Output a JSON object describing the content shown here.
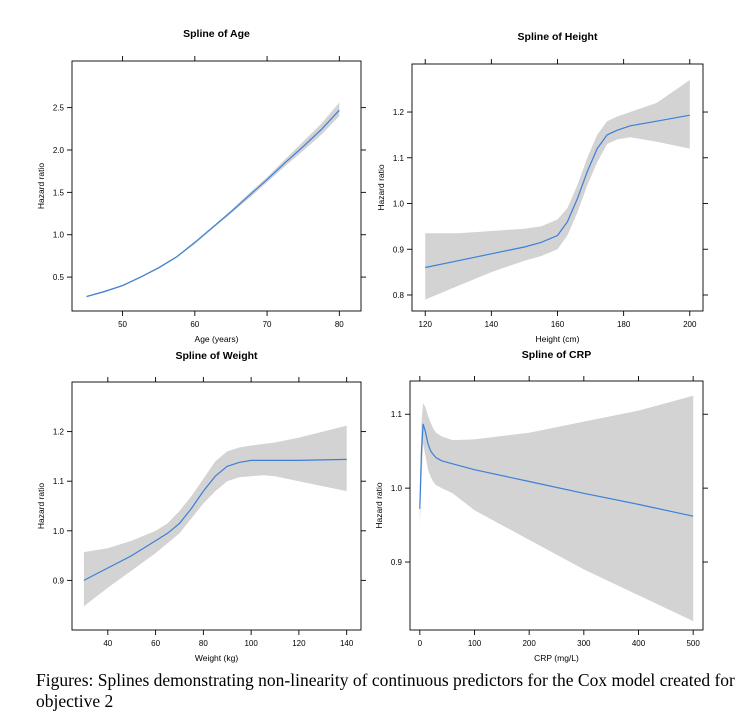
{
  "caption": "Figures: Splines demonstrating non-linearity of continuous predictors for the Cox model created for objective 2",
  "colors": {
    "line": "#3d7fd9",
    "band": "#d3d3d3",
    "axis": "#000000"
  },
  "chart_data": [
    {
      "type": "line",
      "title": "Spline of Age",
      "xlabel": "Age (years)",
      "ylabel": "Hazard ratio",
      "xlim": [
        43,
        83
      ],
      "ylim": [
        0.1,
        3.05
      ],
      "xticks": [
        50,
        60,
        70,
        80
      ],
      "yticks": [
        0.5,
        1.0,
        1.5,
        2.0,
        2.5
      ],
      "series": [
        {
          "x": [
            45,
            47.5,
            50,
            52.5,
            55,
            57.5,
            60,
            62.5,
            65,
            67.5,
            70,
            72.5,
            75,
            77.5,
            80
          ],
          "y": [
            0.27,
            0.33,
            0.4,
            0.5,
            0.61,
            0.74,
            0.91,
            1.09,
            1.27,
            1.46,
            1.65,
            1.85,
            2.04,
            2.24,
            2.47
          ],
          "lower": [
            0.26,
            0.32,
            0.39,
            0.49,
            0.6,
            0.73,
            0.89,
            1.07,
            1.25,
            1.43,
            1.62,
            1.81,
            1.99,
            2.18,
            2.4
          ],
          "upper": [
            0.28,
            0.34,
            0.41,
            0.51,
            0.62,
            0.75,
            0.92,
            1.1,
            1.29,
            1.49,
            1.68,
            1.89,
            2.1,
            2.31,
            2.56
          ]
        }
      ]
    },
    {
      "type": "line",
      "title": "Spline of Height",
      "xlabel": "Height (cm)",
      "ylabel": "Hazard ratio",
      "xlim": [
        116,
        204
      ],
      "ylim": [
        0.765,
        1.305
      ],
      "xticks": [
        120,
        140,
        160,
        180,
        200
      ],
      "yticks": [
        0.8,
        0.9,
        1.0,
        1.1,
        1.2
      ],
      "series": [
        {
          "x": [
            120,
            130,
            140,
            150,
            155,
            160,
            163,
            166,
            169,
            172,
            175,
            178,
            182,
            190,
            200
          ],
          "y": [
            0.86,
            0.875,
            0.89,
            0.905,
            0.915,
            0.93,
            0.96,
            1.01,
            1.07,
            1.12,
            1.15,
            1.16,
            1.17,
            1.18,
            1.193
          ],
          "lower": [
            0.79,
            0.82,
            0.85,
            0.875,
            0.885,
            0.9,
            0.93,
            0.98,
            1.04,
            1.09,
            1.13,
            1.14,
            1.145,
            1.135,
            1.12
          ],
          "upper": [
            0.935,
            0.935,
            0.94,
            0.945,
            0.95,
            0.965,
            0.99,
            1.04,
            1.1,
            1.15,
            1.18,
            1.19,
            1.2,
            1.22,
            1.27
          ]
        }
      ]
    },
    {
      "type": "line",
      "title": "Spline of Weight",
      "xlabel": "Weight (kg)",
      "ylabel": "Hazard ratio",
      "xlim": [
        25,
        146
      ],
      "ylim": [
        0.8,
        1.3
      ],
      "xticks": [
        40,
        60,
        80,
        100,
        120,
        140
      ],
      "yticks": [
        0.9,
        1.0,
        1.1,
        1.2
      ],
      "series": [
        {
          "x": [
            30,
            40,
            50,
            60,
            65,
            70,
            75,
            80,
            85,
            90,
            95,
            100,
            105,
            110,
            120,
            130,
            140
          ],
          "y": [
            0.9,
            0.925,
            0.95,
            0.98,
            0.995,
            1.015,
            1.045,
            1.08,
            1.11,
            1.13,
            1.138,
            1.142,
            1.142,
            1.142,
            1.142,
            1.143,
            1.144
          ],
          "lower": [
            0.848,
            0.885,
            0.92,
            0.955,
            0.975,
            0.995,
            1.025,
            1.055,
            1.08,
            1.1,
            1.108,
            1.11,
            1.112,
            1.11,
            1.1,
            1.09,
            1.08
          ],
          "upper": [
            0.957,
            0.965,
            0.98,
            1.0,
            1.015,
            1.04,
            1.07,
            1.105,
            1.14,
            1.16,
            1.168,
            1.172,
            1.175,
            1.178,
            1.188,
            1.2,
            1.212
          ]
        }
      ]
    },
    {
      "type": "line",
      "title": "Spline of CRP",
      "xlabel": "CRP (mg/L)",
      "ylabel": "Hazard ratio",
      "xlim": [
        -18,
        518
      ],
      "ylim": [
        0.808,
        1.145
      ],
      "xticks": [
        0,
        100,
        200,
        300,
        400,
        500
      ],
      "yticks": [
        0.9,
        1.0,
        1.1
      ],
      "series": [
        {
          "x": [
            0,
            3,
            6,
            10,
            15,
            20,
            25,
            30,
            40,
            60,
            100,
            200,
            300,
            400,
            500
          ],
          "y": [
            0.972,
            1.05,
            1.087,
            1.077,
            1.06,
            1.05,
            1.045,
            1.041,
            1.037,
            1.033,
            1.025,
            1.009,
            0.993,
            0.978,
            0.962
          ],
          "lower": [
            0.95,
            1.01,
            1.06,
            1.045,
            1.025,
            1.015,
            1.008,
            1.004,
            1.0,
            0.993,
            0.97,
            0.93,
            0.89,
            0.855,
            0.82
          ],
          "upper": [
            1.0,
            1.09,
            1.115,
            1.11,
            1.098,
            1.088,
            1.08,
            1.075,
            1.07,
            1.065,
            1.066,
            1.075,
            1.09,
            1.105,
            1.125
          ]
        }
      ]
    }
  ]
}
